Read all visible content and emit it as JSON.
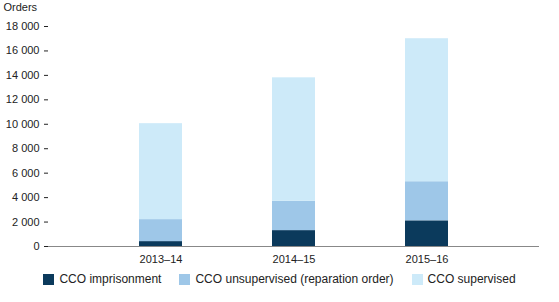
{
  "chart_data": {
    "type": "bar",
    "stacked": true,
    "y_label": "Orders",
    "categories": [
      "2013–14",
      "2014–15",
      "2015–16"
    ],
    "series": [
      {
        "name": "CCO imprisonment",
        "color": "#0b3a5c",
        "values": [
          400,
          1300,
          2100
        ]
      },
      {
        "name": "CCO unsupervised (reparation order)",
        "color": "#9ec7e8",
        "values": [
          1800,
          2400,
          3200
        ]
      },
      {
        "name": "CCO supervised",
        "color": "#cdeaf9",
        "values": [
          7850,
          10100,
          11700
        ]
      }
    ],
    "ylim": [
      0,
      18000
    ],
    "yticks": [
      0,
      {
        "value": 2000,
        "label": "2 000"
      },
      {
        "value": 4000,
        "label": "4 000"
      },
      {
        "value": 6000,
        "label": "6 000"
      },
      {
        "value": 8000,
        "label": "8 000"
      },
      {
        "value": 10000,
        "label": "10 000"
      },
      {
        "value": 12000,
        "label": "12 000"
      },
      {
        "value": 14000,
        "label": "14 000"
      },
      {
        "value": 16000,
        "label": "16 000"
      },
      {
        "value": 18000,
        "label": "18 000"
      }
    ],
    "grid": false,
    "legend": "bottom"
  }
}
